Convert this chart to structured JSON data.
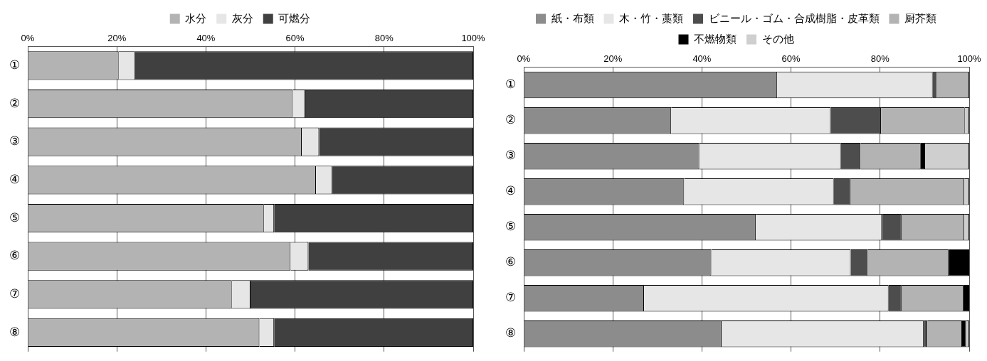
{
  "chart_data": [
    {
      "type": "bar",
      "orientation": "horizontal",
      "stacked": true,
      "categories": [
        "①",
        "②",
        "③",
        "④",
        "⑤",
        "⑥",
        "⑦",
        "⑧"
      ],
      "series": [
        {
          "name": "水分",
          "color": "#b3b3b3",
          "values": [
            20.4,
            59.5,
            61.5,
            64.7,
            53.0,
            59.0,
            45.8,
            52.0
          ]
        },
        {
          "name": "灰分",
          "color": "#e6e6e6",
          "values": [
            3.7,
            2.8,
            3.9,
            3.6,
            2.3,
            4.0,
            4.2,
            3.3
          ]
        },
        {
          "name": "可燃分",
          "color": "#404040",
          "values": [
            75.9,
            37.7,
            34.6,
            31.7,
            44.7,
            37.0,
            50.0,
            44.7
          ]
        }
      ],
      "xlim": [
        0,
        100
      ],
      "xticks": [
        {
          "value": 0,
          "label": "0%"
        },
        {
          "value": 20,
          "label": "20%"
        },
        {
          "value": 40,
          "label": "40%"
        },
        {
          "value": 60,
          "label": "60%"
        },
        {
          "value": 80,
          "label": "80%"
        },
        {
          "value": 100,
          "label": "100%"
        }
      ],
      "grid": "x",
      "legend": "top"
    },
    {
      "type": "bar",
      "orientation": "horizontal",
      "stacked": true,
      "categories": [
        "①",
        "②",
        "③",
        "④",
        "⑤",
        "⑥",
        "⑦",
        "⑧"
      ],
      "series": [
        {
          "name": "紙・布類",
          "color": "#8c8c8c",
          "values": [
            56.9,
            33.1,
            39.4,
            36.0,
            52.1,
            42.1,
            27.0,
            44.4
          ]
        },
        {
          "name": "木・竹・藁類",
          "color": "#e6e6e6",
          "values": [
            34.9,
            35.8,
            31.8,
            33.6,
            28.3,
            31.3,
            54.9,
            45.4
          ]
        },
        {
          "name": "ビニール・ゴム・合成樹脂・皮革類",
          "color": "#4d4d4d",
          "values": [
            0.9,
            11.3,
            4.4,
            3.7,
            4.4,
            3.8,
            2.9,
            0.8
          ]
        },
        {
          "name": "厨芥類",
          "color": "#b3b3b3",
          "values": [
            7.3,
            18.8,
            13.5,
            25.6,
            14.1,
            18.2,
            13.9,
            7.8
          ]
        },
        {
          "name": "不燃物類",
          "color": "#000000",
          "values": [
            0,
            0,
            1.0,
            0,
            0,
            4.6,
            1.3,
            0.9
          ]
        },
        {
          "name": "その他",
          "color": "#cfcfcf",
          "values": [
            0,
            1.0,
            9.9,
            1.1,
            1.1,
            0,
            0,
            0.7
          ]
        }
      ],
      "xlim": [
        0,
        100
      ],
      "xticks": [
        {
          "value": 0,
          "label": "0%"
        },
        {
          "value": 20,
          "label": "20%"
        },
        {
          "value": 40,
          "label": "40%"
        },
        {
          "value": 60,
          "label": "60%"
        },
        {
          "value": 80,
          "label": "80%"
        },
        {
          "value": 100,
          "label": "100%"
        }
      ],
      "grid": "x",
      "legend": "top"
    }
  ]
}
